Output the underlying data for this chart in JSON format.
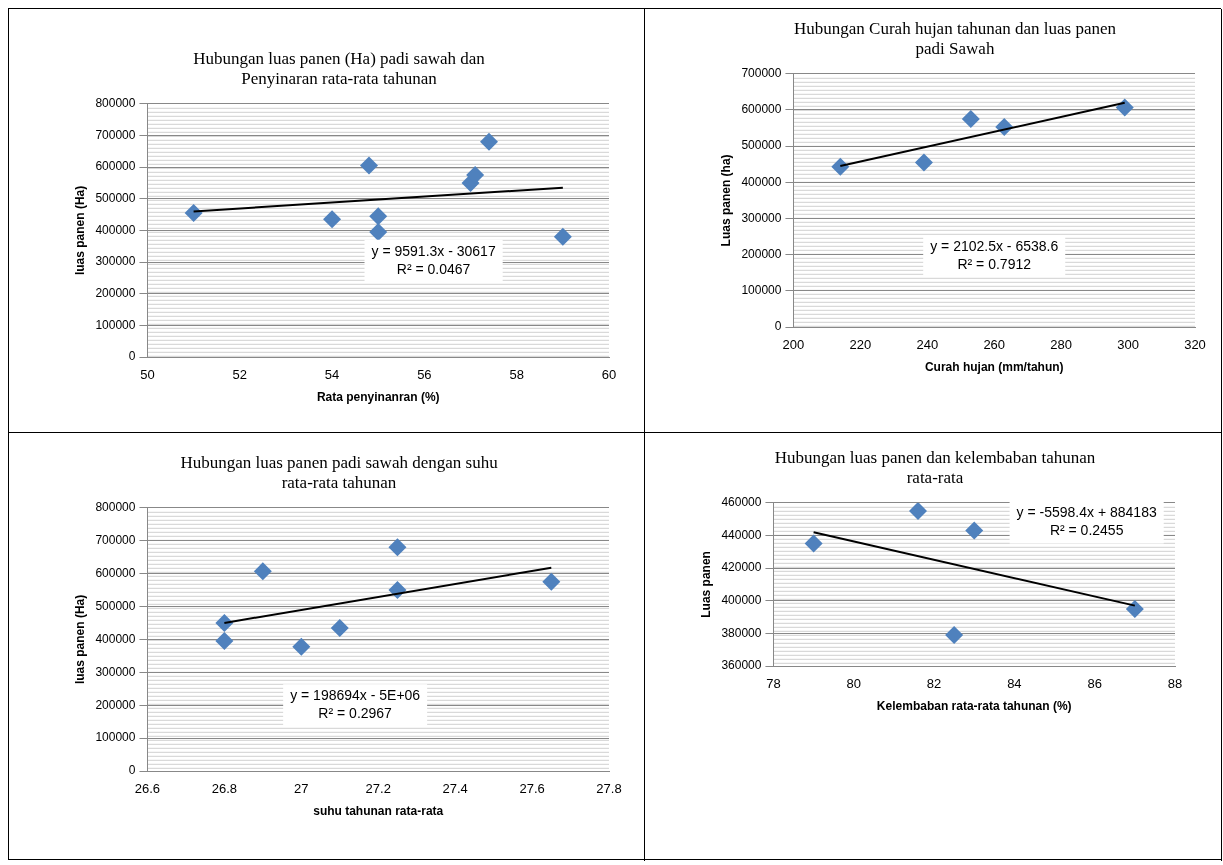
{
  "chart_data": [
    {
      "type": "scatter",
      "title": "Hubungan luas panen (Ha) padi sawah dan Penyinaran rata-rata tahunan",
      "xlabel": "Rata penyinanran (%)",
      "ylabel": "luas panen (Ha)",
      "xlim": [
        50,
        60
      ],
      "xticks": [
        50,
        52,
        54,
        56,
        58,
        60
      ],
      "ylim": [
        0,
        800000
      ],
      "yticks": [
        0,
        100000,
        200000,
        300000,
        400000,
        500000,
        600000,
        700000,
        800000
      ],
      "grid": "y",
      "legend": false,
      "marker": "diamond",
      "annotations": [
        "y = 9591.3x - 30617\nR² = 0.0467"
      ],
      "series": [
        {
          "type": "scatter",
          "color": "#4f81bd",
          "x": [
            51,
            54,
            54.8,
            55,
            55,
            57,
            57.1,
            57.4,
            59
          ],
          "values": [
            455000,
            435000,
            605000,
            445000,
            395000,
            550000,
            575000,
            680000,
            380000
          ]
        },
        {
          "type": "line",
          "color": "#000000",
          "marker": "none",
          "x": [
            51,
            59
          ],
          "values": [
            460000,
            535000
          ]
        }
      ]
    },
    {
      "type": "scatter",
      "title": "Hubungan Curah hujan tahunan dan luas panen padi Sawah",
      "xlabel": "Curah hujan (mm/tahun)",
      "ylabel": "Luas panen (ha)",
      "xlim": [
        200,
        320
      ],
      "xticks": [
        200,
        220,
        240,
        260,
        280,
        300,
        320
      ],
      "ylim": [
        0,
        700000
      ],
      "yticks": [
        0,
        100000,
        200000,
        300000,
        400000,
        500000,
        600000,
        700000
      ],
      "grid": "y",
      "legend": false,
      "marker": "diamond",
      "annotations": [
        "y = 2102.5x - 6538.6\nR² = 0.7912"
      ],
      "series": [
        {
          "type": "scatter",
          "color": "#4f81bd",
          "x": [
            214,
            239,
            253,
            263,
            299
          ],
          "values": [
            443000,
            455000,
            575000,
            553000,
            607000
          ]
        },
        {
          "type": "line",
          "color": "#000000",
          "marker": "none",
          "x": [
            214,
            299
          ],
          "values": [
            445000,
            620000
          ]
        }
      ]
    },
    {
      "type": "scatter",
      "title": "Hubungan luas panen padi sawah dengan suhu rata-rata tahunan",
      "xlabel": "suhu tahunan rata-rata",
      "ylabel": "luas panen (Ha)",
      "xlim": [
        26.6,
        27.8
      ],
      "xticks": [
        26.6,
        26.8,
        27,
        27.2,
        27.4,
        27.6,
        27.8
      ],
      "ylim": [
        0,
        800000
      ],
      "yticks": [
        0,
        100000,
        200000,
        300000,
        400000,
        500000,
        600000,
        700000,
        800000
      ],
      "grid": "y",
      "legend": false,
      "marker": "diamond",
      "annotations": [
        "y = 198694x - 5E+06\nR² = 0.2967"
      ],
      "series": [
        {
          "type": "scatter",
          "color": "#4f81bd",
          "x": [
            26.8,
            26.8,
            26.9,
            27.0,
            27.1,
            27.25,
            27.25,
            27.65
          ],
          "values": [
            450000,
            395000,
            607000,
            378000,
            435000,
            680000,
            550000,
            575000
          ]
        },
        {
          "type": "line",
          "color": "#000000",
          "marker": "none",
          "x": [
            26.8,
            27.65
          ],
          "values": [
            450000,
            618000
          ]
        }
      ]
    },
    {
      "type": "scatter",
      "title": "Hubungan luas panen dan kelembaban tahunan rata-rata",
      "xlabel": "Kelembaban rata-rata tahunan (%)",
      "ylabel": "Luas panen",
      "xlim": [
        78,
        88
      ],
      "xticks": [
        78,
        80,
        82,
        84,
        86,
        88
      ],
      "ylim": [
        360000,
        460000
      ],
      "yticks": [
        360000,
        380000,
        400000,
        420000,
        440000,
        460000
      ],
      "grid": "y",
      "legend": false,
      "marker": "diamond",
      "annotations": [
        "y = -5598.4x + 884183\nR² = 0.2455"
      ],
      "series": [
        {
          "type": "scatter",
          "color": "#4f81bd",
          "x": [
            79,
            81.6,
            82.5,
            83,
            87
          ],
          "values": [
            435000,
            455000,
            379000,
            443000,
            395000
          ]
        },
        {
          "type": "line",
          "color": "#000000",
          "marker": "none",
          "x": [
            79,
            87
          ],
          "values": [
            442000,
            397000
          ]
        }
      ]
    }
  ]
}
